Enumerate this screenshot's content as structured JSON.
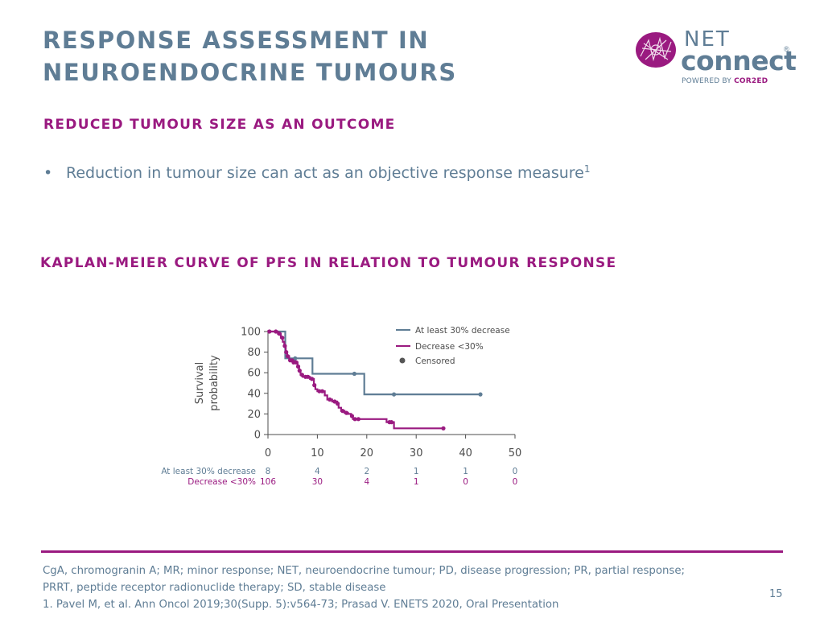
{
  "slide": {
    "title_lines": [
      "RESPONSE ASSESSMENT IN",
      "NEUROENDOCRINE TUMOURS"
    ],
    "subheading_1": "REDUCED TUMOUR SIZE AS AN OUTCOME",
    "bullet": {
      "text": "Reduction in tumour size can act as an objective response measure",
      "superscript": "1"
    },
    "subheading_2": "KAPLAN-MEIER CURVE OF PFS IN RELATION TO TUMOUR RESPONSE",
    "footnotes": [
      "CgA, chromogranin A; MR; minor response; NET, neuroendocrine tumour; PD, disease progression; PR, partial response;",
      "PRRT, peptide receptor radionuclide therapy; SD, stable disease",
      "1. Pavel M, et al. Ann Oncol 2019;30(Supp. 5):v564-73; Prasad V. ENETS 2020, Oral Presentation"
    ],
    "page_number": "15"
  },
  "logo": {
    "line1": "NET",
    "line2": "connect",
    "registered": "®",
    "powered_by": "POWERED BY",
    "brand": "COR2ED",
    "icon": "net-connect-logo-icon"
  },
  "colors": {
    "title": "#5f7d95",
    "accent": "#9a1a80",
    "series_decrease_30": "#5f7d95",
    "series_decrease_lt30": "#9a1a80"
  },
  "chart_data": {
    "type": "line",
    "subtype": "kaplan-meier step",
    "title": "",
    "xlabel": "",
    "ylabel": "Survival probability",
    "xlim": [
      0,
      50
    ],
    "ylim": [
      0,
      100
    ],
    "x_ticks": [
      0,
      10,
      20,
      30,
      40,
      50
    ],
    "y_ticks": [
      0,
      20,
      40,
      60,
      80,
      100
    ],
    "legend": {
      "position": "top-right",
      "entries": [
        "At least 30% decrease",
        "Decrease <30%",
        "Censored"
      ]
    },
    "series": [
      {
        "name": "At least 30% decrease",
        "color": "#5f7d95",
        "steps": [
          [
            0,
            100
          ],
          [
            3.5,
            100
          ],
          [
            3.5,
            74
          ],
          [
            9,
            74
          ],
          [
            9,
            59
          ],
          [
            19.5,
            59
          ],
          [
            19.5,
            39
          ],
          [
            43,
            39
          ]
        ],
        "censored": [
          [
            5.5,
            74
          ],
          [
            17.5,
            59
          ],
          [
            25.5,
            39
          ],
          [
            43,
            39
          ]
        ]
      },
      {
        "name": "Decrease <30%",
        "color": "#9a1a80",
        "steps": [
          [
            0,
            100
          ],
          [
            2,
            100
          ],
          [
            2,
            98
          ],
          [
            2.6,
            98
          ],
          [
            2.6,
            94
          ],
          [
            3,
            94
          ],
          [
            3,
            90
          ],
          [
            3.3,
            90
          ],
          [
            3.3,
            86
          ],
          [
            3.6,
            86
          ],
          [
            3.6,
            80
          ],
          [
            3.9,
            80
          ],
          [
            3.9,
            76
          ],
          [
            4.3,
            76
          ],
          [
            4.3,
            72
          ],
          [
            5.5,
            72
          ],
          [
            5.5,
            70
          ],
          [
            6,
            70
          ],
          [
            6,
            66
          ],
          [
            6.3,
            66
          ],
          [
            6.3,
            62
          ],
          [
            6.6,
            62
          ],
          [
            6.6,
            58
          ],
          [
            7,
            58
          ],
          [
            7,
            56
          ],
          [
            8.5,
            56
          ],
          [
            8.5,
            54
          ],
          [
            9.3,
            54
          ],
          [
            9.3,
            48
          ],
          [
            9.6,
            48
          ],
          [
            9.6,
            44
          ],
          [
            10,
            44
          ],
          [
            10,
            42
          ],
          [
            11.5,
            42
          ],
          [
            11.5,
            38
          ],
          [
            12,
            38
          ],
          [
            12,
            34
          ],
          [
            13,
            34
          ],
          [
            13,
            32
          ],
          [
            14,
            32
          ],
          [
            14,
            30
          ],
          [
            14.3,
            30
          ],
          [
            14.3,
            26
          ],
          [
            14.8,
            26
          ],
          [
            14.8,
            23
          ],
          [
            15.5,
            23
          ],
          [
            15.5,
            21
          ],
          [
            16.2,
            21
          ],
          [
            16.2,
            20
          ],
          [
            16.8,
            20
          ],
          [
            16.8,
            18
          ],
          [
            17.2,
            18
          ],
          [
            17.2,
            15
          ],
          [
            24,
            15
          ],
          [
            24,
            12
          ],
          [
            25.5,
            12
          ],
          [
            25.5,
            6
          ],
          [
            35.5,
            6
          ]
        ],
        "censored": [
          [
            0.3,
            100
          ],
          [
            1.6,
            100
          ],
          [
            2.3,
            98
          ],
          [
            2.9,
            94
          ],
          [
            3.4,
            86
          ],
          [
            3.7,
            80
          ],
          [
            4,
            76
          ],
          [
            4.5,
            72
          ],
          [
            4.9,
            72
          ],
          [
            5.2,
            70
          ],
          [
            5.7,
            70
          ],
          [
            6.1,
            66
          ],
          [
            6.4,
            62
          ],
          [
            6.9,
            58
          ],
          [
            7.6,
            56
          ],
          [
            8.1,
            56
          ],
          [
            8.9,
            54
          ],
          [
            9.4,
            48
          ],
          [
            10.4,
            42
          ],
          [
            11,
            42
          ],
          [
            12.5,
            34
          ],
          [
            13.5,
            32
          ],
          [
            14.1,
            30
          ],
          [
            15.1,
            23
          ],
          [
            15.9,
            21
          ],
          [
            17,
            18
          ],
          [
            17.6,
            15
          ],
          [
            18.3,
            15
          ],
          [
            24.6,
            12
          ],
          [
            25,
            12
          ],
          [
            35.5,
            6
          ]
        ]
      }
    ],
    "risk_table": {
      "times": [
        0,
        10,
        20,
        30,
        40,
        50
      ],
      "rows": [
        {
          "label": "At least 30% decrease",
          "color": "#5f7d95",
          "values": [
            "8",
            "4",
            "2",
            "1",
            "1",
            "0"
          ]
        },
        {
          "label": "Decrease <30%",
          "color": "#9a1a80",
          "values": [
            "106",
            "30",
            "4",
            "1",
            "0",
            "0"
          ]
        }
      ]
    }
  }
}
